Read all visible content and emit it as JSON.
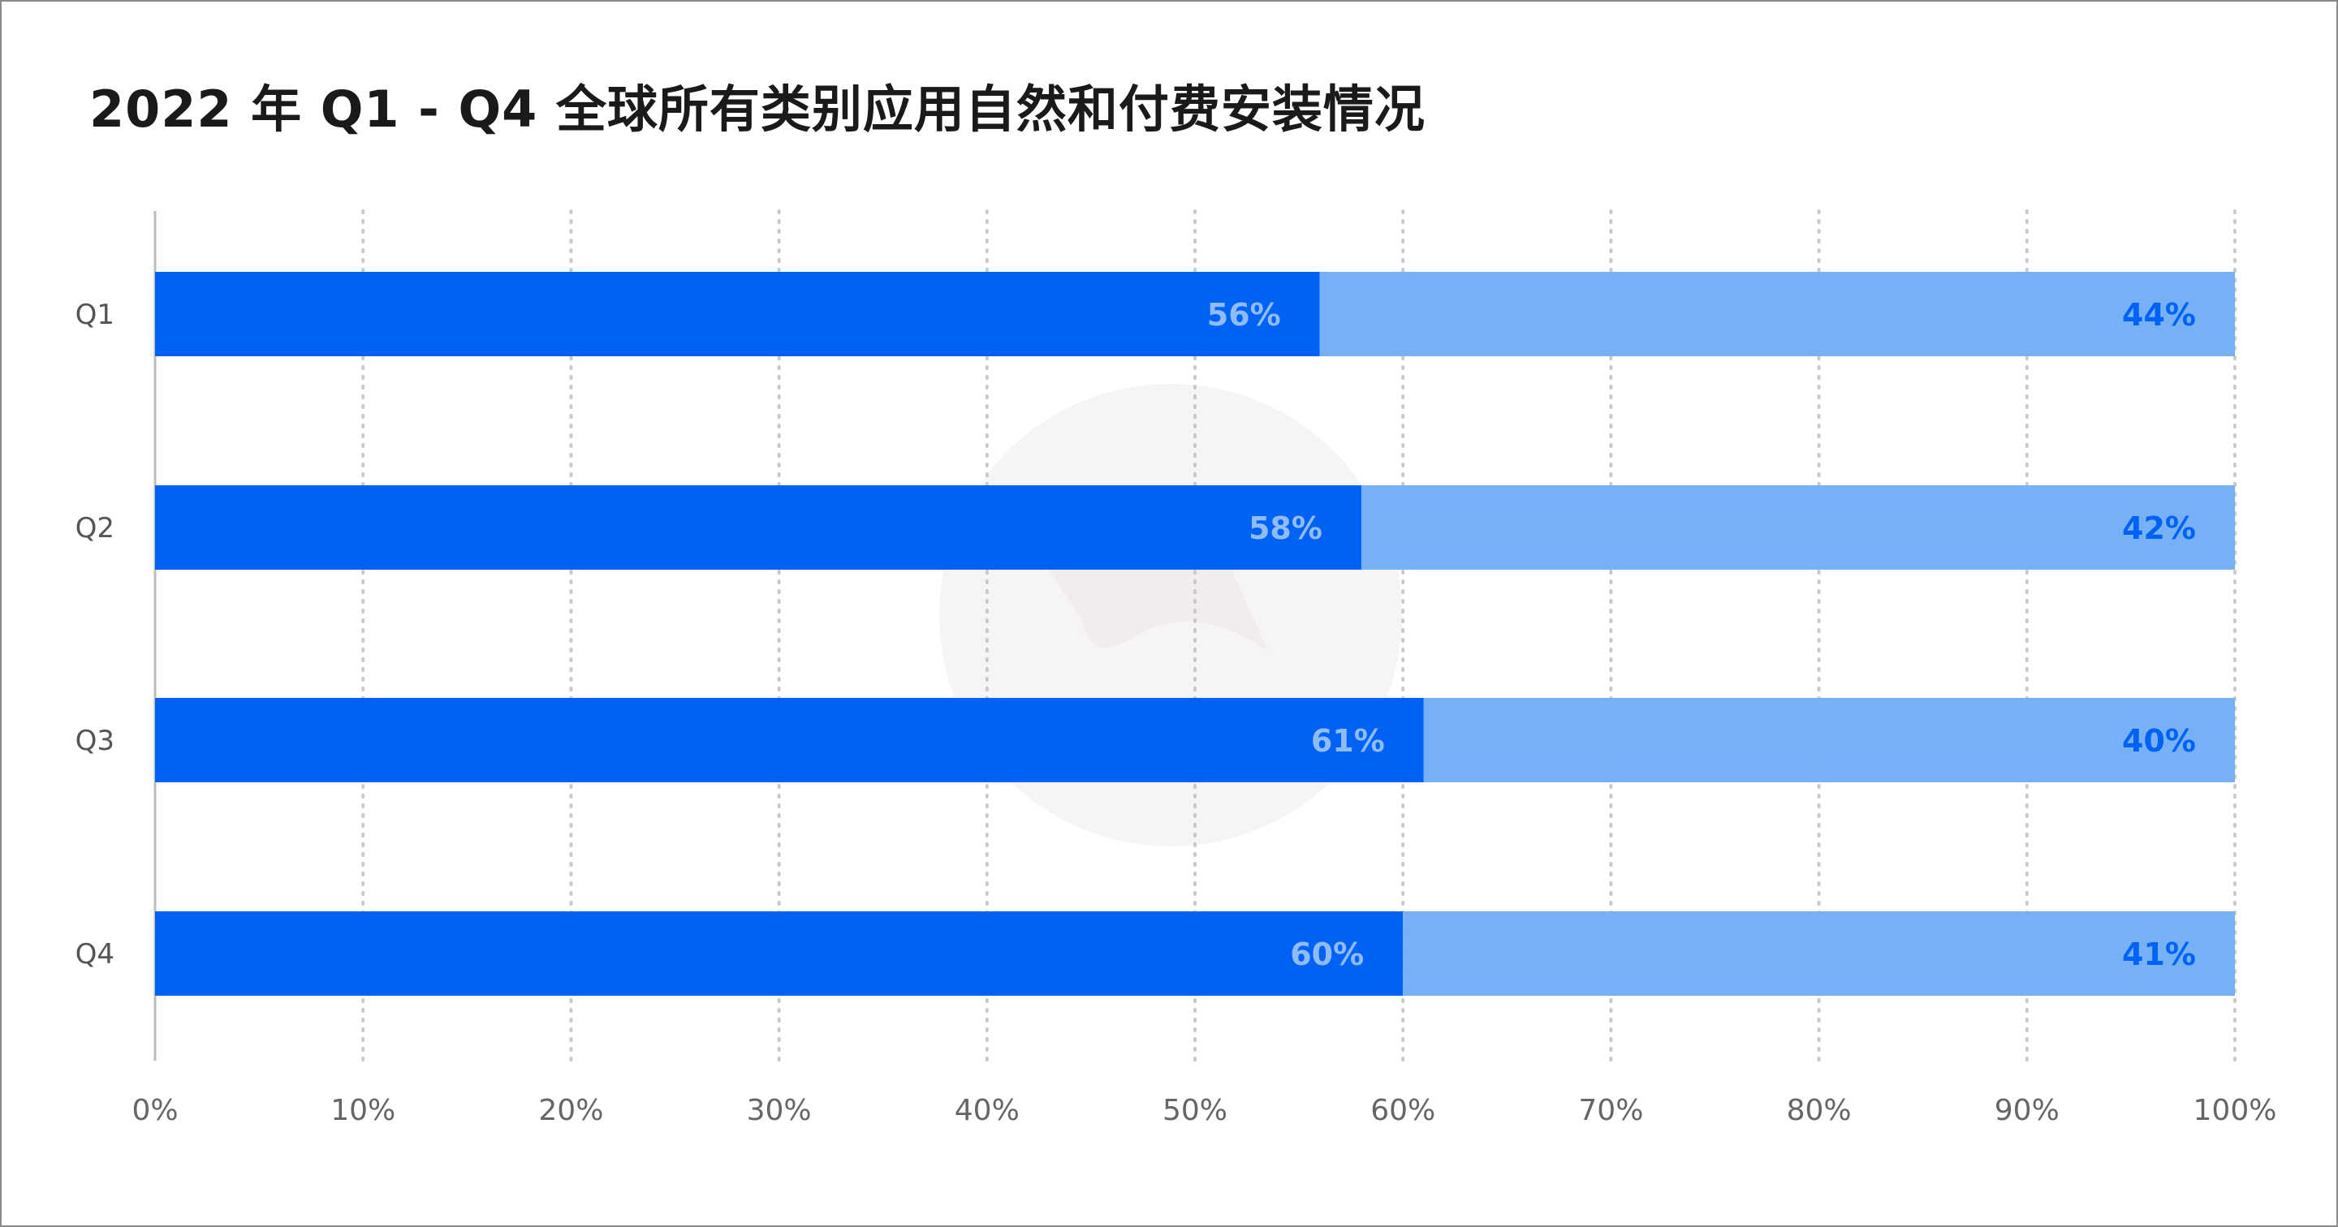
{
  "title": "2022 年 Q1 - Q4 全球所有类别应用自然和付费安装情况",
  "colors": {
    "background": "#ffffff",
    "series_primary": "#0062f5",
    "series_secondary": "#77b1f5",
    "label_on_primary": "#8fbcf6",
    "label_on_secondary": "#0062f5",
    "grid": "#c9c9c9",
    "axis": "#bdbdbd",
    "watermark": "#f7f4f4"
  },
  "watermark_icon": "app-logo-watermark-icon",
  "chart_data": {
    "type": "bar",
    "orientation": "horizontal",
    "stacked": true,
    "title": "2022 年 Q1 - Q4 全球所有类别应用自然和付费安装情况",
    "categories": [
      "Q1",
      "Q2",
      "Q3",
      "Q4"
    ],
    "series": [
      {
        "values": [
          56,
          58,
          61,
          60
        ],
        "labels": [
          "56%",
          "58%",
          "61%",
          "60%"
        ]
      },
      {
        "values": [
          44,
          42,
          40,
          41
        ],
        "labels": [
          "44%",
          "42%",
          "40%",
          "41%"
        ]
      }
    ],
    "xlim": [
      0,
      100
    ],
    "xticks": [
      0,
      10,
      20,
      30,
      40,
      50,
      60,
      70,
      80,
      90,
      100
    ],
    "xtick_labels": [
      "0%",
      "10%",
      "20%",
      "30%",
      "40%",
      "50%",
      "60%",
      "70%",
      "80%",
      "90%",
      "100%"
    ],
    "xlabel": "",
    "ylabel": "",
    "grid": true,
    "grid_style": "dotted-vertical",
    "legend": "none"
  }
}
